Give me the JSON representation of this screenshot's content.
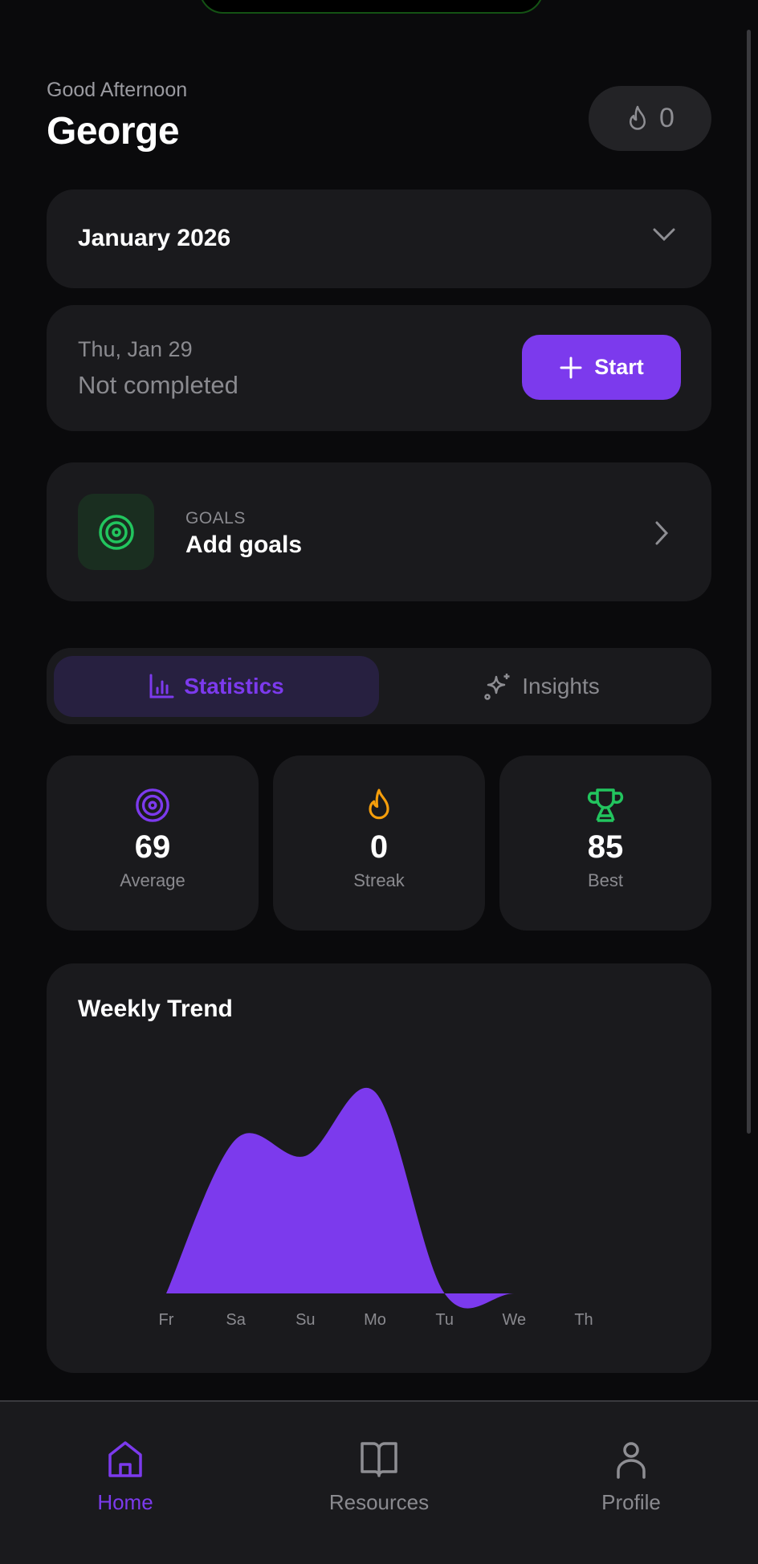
{
  "header": {
    "greeting": "Good Afternoon",
    "name": "George",
    "streak_count": "0"
  },
  "month_selector": {
    "label": "January 2026"
  },
  "today": {
    "date": "Thu, Jan 29",
    "status": "Not completed",
    "start_label": "Start"
  },
  "goals": {
    "label": "GOALS",
    "title": "Add goals"
  },
  "tabs": [
    {
      "label": "Statistics",
      "active": true
    },
    {
      "label": "Insights",
      "active": false
    }
  ],
  "stats": [
    {
      "value": "69",
      "label": "Average",
      "icon": "target-icon",
      "color": "#7c3aed"
    },
    {
      "value": "0",
      "label": "Streak",
      "icon": "flame-icon",
      "color": "#f59e0b"
    },
    {
      "value": "85",
      "label": "Best",
      "icon": "trophy-icon",
      "color": "#22c55e"
    }
  ],
  "chart_data": {
    "type": "area",
    "title": "Weekly Trend",
    "categories": [
      "Fr",
      "Sa",
      "Su",
      "Mo",
      "Tu",
      "We",
      "Th"
    ],
    "values": [
      0,
      65,
      58,
      85,
      0,
      0,
      0
    ],
    "ylim": [
      0,
      85
    ],
    "grid": false,
    "color": "#7c3aed"
  },
  "nav": [
    {
      "label": "Home",
      "icon": "home-icon",
      "active": true
    },
    {
      "label": "Resources",
      "icon": "book-icon",
      "active": false
    },
    {
      "label": "Profile",
      "icon": "user-icon",
      "active": false
    }
  ],
  "colors": {
    "accent": "#7c3aed",
    "background": "#0a0a0c",
    "card": "#1a1a1d"
  }
}
